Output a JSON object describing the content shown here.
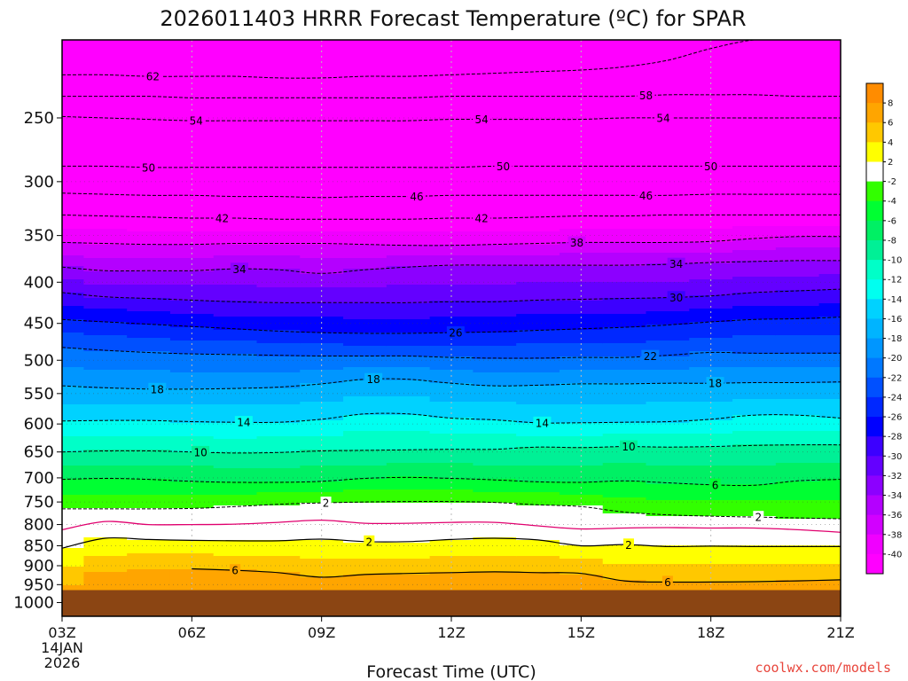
{
  "chart_data": {
    "type": "heatmap",
    "title": "2026011403 HRRR Forecast Temperature (ºC) for SPAR",
    "xlabel": "Forecast Time (UTC)",
    "ylabel": "",
    "credit": "coolwx.com/models",
    "x_ticks": [
      {
        "label": "03Z",
        "hour": 3,
        "sub": [
          "14JAN",
          "2026"
        ]
      },
      {
        "label": "06Z",
        "hour": 6
      },
      {
        "label": "09Z",
        "hour": 9
      },
      {
        "label": "12Z",
        "hour": 12
      },
      {
        "label": "15Z",
        "hour": 15
      },
      {
        "label": "18Z",
        "hour": 18
      },
      {
        "label": "21Z",
        "hour": 21
      }
    ],
    "xlim": [
      3,
      21
    ],
    "y_ticks": [
      250,
      300,
      350,
      400,
      450,
      500,
      550,
      600,
      650,
      700,
      750,
      800,
      850,
      900,
      950,
      1000
    ],
    "ylim": [
      200,
      1040
    ],
    "y_scale": "log",
    "y_inverted": true,
    "ground_pressure": 965,
    "ground_color": "#8b4513",
    "hours": [
      3,
      4,
      5,
      6,
      7,
      8,
      9,
      10,
      11,
      12,
      13,
      14,
      15,
      16,
      17,
      18,
      19,
      20,
      21
    ],
    "isotherms": [
      {
        "temp": -62,
        "p": [
          221,
          221,
          222,
          222,
          222,
          223,
          223,
          222,
          222,
          221,
          220,
          219,
          218,
          216,
          212,
          205,
          200,
          200,
          200
        ]
      },
      {
        "temp": -58,
        "p": [
          235,
          235,
          235,
          236,
          236,
          236,
          236,
          236,
          236,
          235,
          235,
          235,
          235,
          235,
          234,
          234,
          234,
          235,
          235
        ]
      },
      {
        "temp": -54,
        "p": [
          249,
          250,
          251,
          252,
          252,
          252,
          252,
          252,
          252,
          251,
          251,
          251,
          251,
          250,
          250,
          250,
          250,
          250,
          250
        ]
      },
      {
        "temp": -50,
        "p": [
          287,
          287,
          288,
          288,
          288,
          288,
          288,
          288,
          288,
          288,
          287,
          287,
          287,
          287,
          287,
          287,
          287,
          287,
          287
        ]
      },
      {
        "temp": -46,
        "p": [
          310,
          311,
          312,
          312,
          313,
          313,
          314,
          313,
          313,
          312,
          312,
          312,
          312,
          312,
          312,
          311,
          311,
          311,
          311
        ]
      },
      {
        "temp": -42,
        "p": [
          330,
          331,
          332,
          333,
          333,
          334,
          334,
          334,
          334,
          333,
          333,
          332,
          331,
          331,
          330,
          330,
          330,
          330,
          330
        ]
      },
      {
        "temp": -38,
        "p": [
          357,
          358,
          359,
          359,
          358,
          358,
          358,
          359,
          360,
          360,
          359,
          358,
          357,
          357,
          357,
          356,
          353,
          351,
          351
        ]
      },
      {
        "temp": -34,
        "p": [
          383,
          387,
          387,
          387,
          385,
          386,
          390,
          386,
          383,
          381,
          381,
          381,
          381,
          381,
          380,
          378,
          377,
          376,
          376
        ]
      },
      {
        "temp": -30,
        "p": [
          412,
          417,
          419,
          421,
          423,
          424,
          424,
          424,
          424,
          423,
          423,
          421,
          420,
          419,
          418,
          416,
          412,
          410,
          408
        ]
      },
      {
        "temp": -26,
        "p": [
          445,
          448,
          451,
          454,
          457,
          460,
          462,
          463,
          463,
          462,
          461,
          459,
          457,
          455,
          452,
          448,
          445,
          444,
          442
        ]
      },
      {
        "temp": -22,
        "p": [
          482,
          486,
          489,
          491,
          492,
          493,
          494,
          494,
          494,
          496,
          497,
          497,
          496,
          496,
          493,
          489,
          490,
          490,
          490
        ]
      },
      {
        "temp": -18,
        "p": [
          538,
          541,
          543,
          543,
          542,
          540,
          535,
          528,
          528,
          534,
          538,
          537,
          535,
          535,
          534,
          534,
          533,
          533,
          532
        ]
      },
      {
        "temp": -14,
        "p": [
          595,
          594,
          594,
          596,
          597,
          597,
          592,
          583,
          583,
          590,
          593,
          598,
          598,
          597,
          596,
          592,
          585,
          585,
          590
        ]
      },
      {
        "temp": -10,
        "p": [
          650,
          648,
          648,
          650,
          652,
          651,
          648,
          647,
          646,
          645,
          645,
          641,
          642,
          640,
          641,
          640,
          638,
          637,
          637
        ]
      },
      {
        "temp": -6,
        "p": [
          703,
          701,
          703,
          707,
          709,
          709,
          707,
          701,
          699,
          701,
          704,
          708,
          709,
          706,
          710,
          714,
          715,
          706,
          703
        ]
      },
      {
        "temp": -2,
        "p": [
          765,
          765,
          765,
          764,
          760,
          755,
          752,
          750,
          749,
          749,
          751,
          756,
          760,
          772,
          778,
          781,
          783,
          785,
          787
        ]
      },
      {
        "temp": 0,
        "p": [
          812,
          793,
          800,
          800,
          799,
          795,
          790,
          797,
          797,
          795,
          795,
          803,
          810,
          808,
          807,
          808,
          808,
          812,
          818
        ]
      },
      {
        "temp": 2,
        "p": [
          856,
          832,
          835,
          837,
          838,
          838,
          834,
          840,
          840,
          835,
          832,
          836,
          850,
          847,
          852,
          851,
          852,
          852,
          852
        ]
      },
      {
        "temp": 6,
        "p": [
          null,
          null,
          null,
          908,
          912,
          918,
          930,
          923,
          920,
          918,
          916,
          918,
          920,
          940,
          943,
          943,
          942,
          940,
          937
        ]
      }
    ],
    "isotherm_labels": [
      {
        "text": "62",
        "hour": 5.1,
        "temp": -62
      },
      {
        "text": "58",
        "hour": 16.5,
        "temp": -58
      },
      {
        "text": "54",
        "hour": 6.1,
        "temp": -54
      },
      {
        "text": "54",
        "hour": 12.7,
        "temp": -54
      },
      {
        "text": "54",
        "hour": 16.9,
        "temp": -54
      },
      {
        "text": "50",
        "hour": 5.0,
        "temp": -50
      },
      {
        "text": "50",
        "hour": 13.2,
        "temp": -50
      },
      {
        "text": "50",
        "hour": 18.0,
        "temp": -50
      },
      {
        "text": "46",
        "hour": 11.2,
        "temp": -46
      },
      {
        "text": "46",
        "hour": 16.5,
        "temp": -46
      },
      {
        "text": "42",
        "hour": 6.7,
        "temp": -42
      },
      {
        "text": "42",
        "hour": 12.7,
        "temp": -42
      },
      {
        "text": "38",
        "hour": 14.9,
        "temp": -38
      },
      {
        "text": "34",
        "hour": 7.1,
        "temp": -34
      },
      {
        "text": "34",
        "hour": 17.2,
        "temp": -34
      },
      {
        "text": "30",
        "hour": 17.2,
        "temp": -30
      },
      {
        "text": "26",
        "hour": 12.1,
        "temp": -26
      },
      {
        "text": "22",
        "hour": 16.6,
        "temp": -22
      },
      {
        "text": "18",
        "hour": 5.2,
        "temp": -18
      },
      {
        "text": "18",
        "hour": 10.2,
        "temp": -18
      },
      {
        "text": "18",
        "hour": 18.1,
        "temp": -18
      },
      {
        "text": "14",
        "hour": 7.2,
        "temp": -14
      },
      {
        "text": "14",
        "hour": 14.1,
        "temp": -14
      },
      {
        "text": "10",
        "hour": 6.2,
        "temp": -10
      },
      {
        "text": "10",
        "hour": 16.1,
        "temp": -10
      },
      {
        "text": "6",
        "hour": 18.1,
        "temp": -6
      },
      {
        "text": "2",
        "hour": 9.1,
        "temp": -2
      },
      {
        "text": "2",
        "hour": 19.1,
        "temp": -2
      },
      {
        "text": "2",
        "hour": 10.1,
        "temp": 2
      },
      {
        "text": "2",
        "hour": 16.1,
        "temp": 2
      },
      {
        "text": "6",
        "hour": 7.0,
        "temp": 6
      },
      {
        "text": "6",
        "hour": 17.0,
        "temp": 6
      }
    ],
    "colorbar": {
      "labels": [
        "8",
        "6",
        "4",
        "2",
        "-2",
        "-4",
        "-6",
        "-8",
        "-10",
        "-12",
        "-14",
        "-16",
        "-18",
        "-20",
        "-22",
        "-24",
        "-26",
        "-28",
        "-30",
        "-32",
        "-34",
        "-36",
        "-38",
        "-40"
      ],
      "bands": [
        {
          "min": 8,
          "max": 10,
          "color": "#ff8c00"
        },
        {
          "min": 6,
          "max": 8,
          "color": "#ffa500"
        },
        {
          "min": 4,
          "max": 6,
          "color": "#ffc800"
        },
        {
          "min": 2,
          "max": 4,
          "color": "#ffff00"
        },
        {
          "min": -2,
          "max": 2,
          "color": "#ffffff"
        },
        {
          "min": -4,
          "max": -2,
          "color": "#32ff00"
        },
        {
          "min": -6,
          "max": -4,
          "color": "#00ff32"
        },
        {
          "min": -8,
          "max": -6,
          "color": "#00f064"
        },
        {
          "min": -10,
          "max": -8,
          "color": "#00f096"
        },
        {
          "min": -12,
          "max": -10,
          "color": "#00ffc8"
        },
        {
          "min": -14,
          "max": -12,
          "color": "#00fff0"
        },
        {
          "min": -16,
          "max": -14,
          "color": "#00d2ff"
        },
        {
          "min": -18,
          "max": -16,
          "color": "#00b4ff"
        },
        {
          "min": -20,
          "max": -18,
          "color": "#0096ff"
        },
        {
          "min": -22,
          "max": -20,
          "color": "#0078ff"
        },
        {
          "min": -24,
          "max": -22,
          "color": "#0050ff"
        },
        {
          "min": -26,
          "max": -24,
          "color": "#0028ff"
        },
        {
          "min": -28,
          "max": -26,
          "color": "#0000ff"
        },
        {
          "min": -30,
          "max": -28,
          "color": "#3c00ff"
        },
        {
          "min": -32,
          "max": -30,
          "color": "#6400ff"
        },
        {
          "min": -34,
          "max": -32,
          "color": "#8c00ff"
        },
        {
          "min": -36,
          "max": -34,
          "color": "#b400ff"
        },
        {
          "min": -38,
          "max": -36,
          "color": "#d200ff"
        },
        {
          "min": -40,
          "max": -38,
          "color": "#f000ff"
        },
        {
          "min": -80,
          "max": -40,
          "color": "#ff00ff"
        }
      ]
    },
    "freezing_line_color": "#e0006e",
    "grid": true
  }
}
